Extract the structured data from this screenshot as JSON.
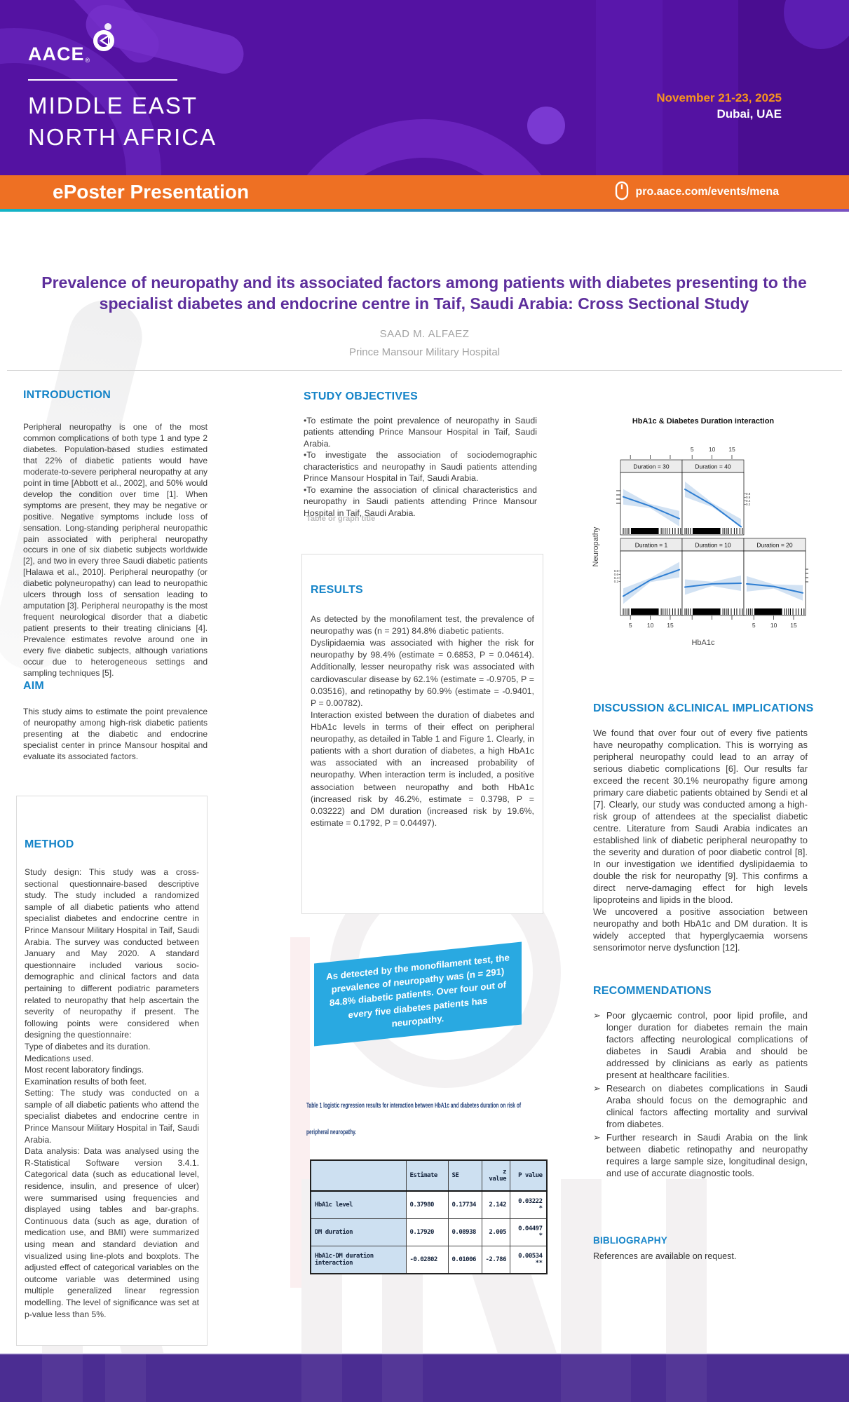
{
  "header": {
    "logo_text": "AACE",
    "logo_reg": "®",
    "event_line1": "MIDDLE EAST",
    "event_line2": "NORTH AFRICA",
    "date": "November 21-23, 2025",
    "location": "Dubai, UAE"
  },
  "banner": {
    "title": "ePoster Presentation",
    "url": "pro.aace.com/events/mena"
  },
  "poster": {
    "title": "Prevalence of neuropathy and its associated factors among patients with diabetes presenting to the specialist diabetes and endocrine centre in Taif, Saudi Arabia: Cross Sectional Study",
    "author": "SAAD M. ALFAEZ",
    "affiliation": "Prince Mansour Military Hospital"
  },
  "introduction": {
    "heading": "INTRODUCTION",
    "body": "Peripheral neuropathy is one of the most common complications of both type 1 and type 2 diabetes. Population-based studies estimated that 22% of diabetic patients would have moderate-to-severe peripheral neuropathy at any point in time [Abbott et al., 2002], and 50% would develop the condition over time [1]. When symptoms are present, they may be negative or positive. Negative symptoms include loss of sensation. Long-standing peripheral neuropathic pain associated with peripheral neuropathy occurs in one of six diabetic subjects worldwide [2], and two in every three Saudi diabetic patients [Halawa et al., 2010]. Peripheral neuropathy (or diabetic polyneuropathy) can lead to neuropathic ulcers through loss of sensation leading to amputation [3]. Peripheral neuropathy is the most frequent neurological disorder that a diabetic patient presents to their treating clinicians [4]. Prevalence estimates revolve around one in every five diabetic subjects, although variations occur due to heterogeneous settings and sampling techniques [5]."
  },
  "aim": {
    "heading": "AIM",
    "body": "This study aims to estimate the point prevalence of neuropathy among high-risk diabetic patients presenting at the diabetic and endocrine specialist center in prince Mansour hospital and evaluate its associated factors."
  },
  "method": {
    "heading": "METHOD",
    "body": "Study design: This study was a cross-sectional questionnaire-based descriptive study. The study included a randomized sample of all diabetic patients who attend specialist diabetes and endocrine centre in Prince Mansour Military Hospital in Taif, Saudi Arabia. The survey was conducted between January and May 2020. A standard questionnaire included various socio-demographic and clinical factors and data pertaining to different podiatric parameters related to neuropathy that help ascertain the severity of neuropathy if present. The following points were considered when designing the questionnaire:\nType of diabetes and its duration.\nMedications used.\nMost recent laboratory findings.\nExamination results of both feet.\nSetting: The study was conducted on a sample of all diabetic patients who attend the specialist diabetes and endocrine centre in Prince Mansour Military Hospital in Taif, Saudi Arabia.\nData analysis: Data was analysed using the R-Statistical Software version 3.4.1. Categorical data (such as educational level, residence, insulin, and presence of ulcer) were summarised using frequencies and displayed using tables and bar-graphs. Continuous data (such as age, duration of medication use, and BMI) were summarized using mean and standard deviation and visualized using line-plots and boxplots. The adjusted effect of categorical variables on the outcome variable was determined using multiple generalized linear regression modelling. The level of significance was set at p-value less than 5%."
  },
  "objectives": {
    "heading": "STUDY OBJECTIVES",
    "body": "•To estimate the point prevalence of neuropathy in Saudi patients attending Prince Mansour Hospital in Taif, Saudi Arabia.\n•To investigate the association of sociodemographic characteristics and neuropathy in Saudi patients attending Prince Mansour Hospital in Taif, Saudi Arabia.\n•To examine the association of clinical characteristics and neuropathy in Saudi patients attending Prince Mansour Hospital in Taif, Saudi Arabia."
  },
  "placeholder_caption": "Table or graph title",
  "results": {
    "heading": "RESULTS",
    "body": "As detected by the monofilament test, the prevalence of neuropathy was (n = 291) 84.8% diabetic patients.\nDyslipidaemia was associated with higher the risk for neuropathy by 98.4% (estimate = 0.6853, P = 0.04614). Additionally, lesser neuropathy risk was associated with cardiovascular disease by 62.1% (estimate = -0.9705, P = 0.03516), and retinopathy by 60.9% (estimate = -0.9401, P = 0.00782).\nInteraction existed between the duration of diabetes and HbA1c levels in terms of their effect on peripheral neuropathy, as detailed in Table 1 and Figure 1. Clearly, in patients with a short duration of diabetes, a high HbA1c was associated with an increased probability of neuropathy. When interaction term is included, a positive association between neuropathy and both HbA1c (increased risk by 46.2%, estimate = 0.3798, P = 0.03222) and DM duration (increased risk by 19.6%, estimate = 0.1792, P = 0.04497)."
  },
  "callout": {
    "text": "As detected by the monofilament test, the prevalence of neuropathy was (n = 291) 84.8% diabetic patients. Over four out of every five diabetes  patients has neuropathy."
  },
  "table1": {
    "caption": "Table 1 logistic regression results for interaction between HbA1c and diabetes duration on risk of\nperipheral neuropathy.",
    "headers": [
      "",
      "Estimate",
      "SE",
      "z value",
      "P value"
    ],
    "rows": [
      [
        "HbA1c level",
        "0.37980",
        "0.17734",
        "2.142",
        "0.03222 *"
      ],
      [
        "DM duration",
        "0.17920",
        "0.08938",
        "2.005",
        "0.04497 *"
      ],
      [
        "HbA1c-DM duration interaction",
        "-0.02802",
        "0.01006",
        "-2.786",
        "0.00534 **"
      ]
    ]
  },
  "discussion": {
    "heading": "DISCUSSION &CLINICAL IMPLICATIONS",
    "body": "We found that over four out of every five patients have neuropathy complication. This is worrying as peripheral neuropathy could lead to an array of serious diabetic complications [6]. Our results far exceed the recent 30.1% neuropathy figure among primary care diabetic patients obtained by Sendi et al [7]. Clearly, our study was conducted among a high-risk group of attendees at the specialist diabetic centre. Literature from Saudi Arabia indicates an established link of diabetic peripheral neuropathy to the severity and duration of poor diabetic control [8]. In our investigation we identified dyslipidaemia to double the risk for neuropathy [9]. This confirms a direct nerve-damaging effect for high levels lipoproteins and lipids in the blood.\nWe uncovered a positive association between neuropathy and both HbA1c and DM duration. It is widely accepted that hyperglycaemia worsens sensorimotor nerve dysfunction [12]."
  },
  "recommendations": {
    "heading": "RECOMMENDATIONS",
    "bullet_glyph": "➢",
    "items": [
      "Poor glycaemic control, poor lipid profile, and longer duration for diabetes remain the main factors affecting neurological complications of diabetes in Saudi Arabia and should be addressed by clinicians as early as patients present at healthcare facilities.",
      "Research on diabetes complications in Saudi Araba should focus on the demographic and clinical factors affecting mortality and survival from diabetes.",
      "Further research in Saudi Arabia on the link between diabetic retinopathy and neuropathy requires a large sample size, longitudinal design, and use of accurate diagnostic tools."
    ]
  },
  "bibliography": {
    "heading": "BIBLIOGRAPHY",
    "body": "References are available on request."
  },
  "chart_data": {
    "type": "line",
    "title": "HbA1c & Diabetes Duration interaction",
    "xlabel": "HbA1c",
    "ylabel": "Neuropathy",
    "x_ticks": [
      5,
      10,
      15
    ],
    "x_range": [
      2.5,
      18
    ],
    "y_range": [
      0,
      1
    ],
    "y_tick_labels": [
      "0.2",
      "0.4",
      "0.6",
      "0.8"
    ],
    "grid": false,
    "legend": "none",
    "layout_note": "lattice of 5 panels, probability of neuropathy vs HbA1c conditioned on diabetes duration; blue fitted line with confidence band and black data rug",
    "panels": [
      {
        "label": "Duration = 30",
        "row": 0,
        "col": 0,
        "trend": "decreasing",
        "line": [
          [
            2.5,
            0.61
          ],
          [
            10,
            0.46
          ],
          [
            18,
            0.26
          ]
        ]
      },
      {
        "label": "Duration = 40",
        "row": 0,
        "col": 1,
        "trend": "steeply decreasing",
        "line": [
          [
            2.5,
            0.73
          ],
          [
            10,
            0.48
          ],
          [
            18,
            0.13
          ]
        ]
      },
      {
        "label": "Duration = 1",
        "row": 1,
        "col": 0,
        "trend": "increasing",
        "line": [
          [
            2.5,
            0.3
          ],
          [
            10,
            0.55
          ],
          [
            18,
            0.71
          ]
        ]
      },
      {
        "label": "Duration = 10",
        "row": 1,
        "col": 1,
        "trend": "flat",
        "line": [
          [
            2.5,
            0.44
          ],
          [
            10,
            0.49
          ],
          [
            18,
            0.5
          ]
        ]
      },
      {
        "label": "Duration = 20",
        "row": 1,
        "col": 2,
        "trend": "slightly decreasing",
        "line": [
          [
            2.5,
            0.49
          ],
          [
            10,
            0.45
          ],
          [
            18,
            0.35
          ]
        ]
      }
    ]
  },
  "colors": {
    "header_purple": "#5412a2",
    "banner_orange": "#ee7023",
    "date_orange": "#f7941e",
    "heading_blue": "#1584c8",
    "title_purple": "#5e2f9c",
    "callout_blue": "#29a9e1",
    "footer_purple": "#4b2d92",
    "table_header_bg": "#cde0f1",
    "chart_line_blue": "#2e7ed2",
    "chart_band_blue": "#cddff2"
  }
}
